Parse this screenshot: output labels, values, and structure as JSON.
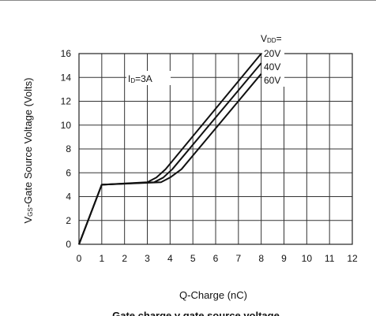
{
  "chart_data": {
    "type": "line",
    "xlabel": "Q-Charge (nC)",
    "ylabel_main": "V",
    "ylabel_sub": "GS",
    "ylabel_rest": "-Gate Source Voltage (Volts)",
    "xlim": [
      0,
      12
    ],
    "ylim": [
      0,
      16
    ],
    "x_ticks": [
      0,
      1,
      2,
      3,
      4,
      5,
      6,
      7,
      8,
      9,
      10,
      11,
      12
    ],
    "y_ticks": [
      0,
      2,
      4,
      6,
      8,
      10,
      12,
      14,
      16
    ],
    "grid": true,
    "caption": "Gate charge v gate source voltage",
    "condition": {
      "main": "I",
      "sub": "D",
      "rest": "=3A"
    },
    "legend_title": {
      "main": "V",
      "sub": "DD",
      "rest": "="
    },
    "series": [
      {
        "name": "20V",
        "x": [
          0,
          1.0,
          3.0,
          3.4,
          3.8,
          8.0
        ],
        "y": [
          0,
          5.0,
          5.2,
          5.6,
          6.3,
          16.0
        ]
      },
      {
        "name": "40V",
        "x": [
          0,
          1.0,
          3.3,
          3.7,
          4.1,
          8.0
        ],
        "y": [
          0,
          5.0,
          5.2,
          5.6,
          6.3,
          15.2
        ]
      },
      {
        "name": "60V",
        "x": [
          0,
          1.0,
          3.6,
          4.0,
          4.5,
          8.0
        ],
        "y": [
          0,
          5.0,
          5.2,
          5.6,
          6.3,
          14.3
        ]
      }
    ]
  }
}
